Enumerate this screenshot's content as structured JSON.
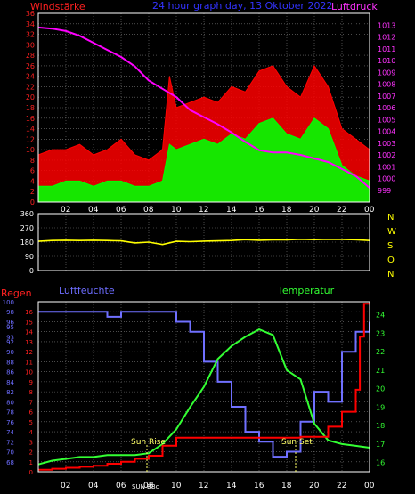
{
  "colors": {
    "background": "#000000",
    "grid": "#7a7a7a",
    "frame": "#ffffff",
    "wind_label": "#ff2020",
    "pressure_label": "#ff33ff",
    "title_color": "#3333ff",
    "direction_label": "#ffff00",
    "regen_label": "#ff2020",
    "humidity_label": "#6d6dff",
    "temperature_label": "#33ff33",
    "tick_text": "#ffffff"
  },
  "header": {
    "left_label": "Windstärke",
    "center_title": "24 hour graph day, 13 Oktober 2022",
    "right_label": "Luftdruck"
  },
  "direction_labels": [
    "N",
    "W",
    "S",
    "O",
    "N"
  ],
  "bottom_labels": {
    "regen": "Regen",
    "luftfeuchte": "Luftfeuchte",
    "temperatur": "Temperatur",
    "sun_rise": "Sun Rise",
    "sun_set": "Sun Set",
    "sun_bbc": "SUN BBc"
  },
  "chart_data": [
    {
      "type": "line",
      "name": "wind_pressure",
      "x_ticks": [
        "02",
        "04",
        "06",
        "08",
        "10",
        "12",
        "14",
        "16",
        "18",
        "20",
        "22",
        "00"
      ],
      "xlim": [
        0,
        24
      ],
      "ylim_left": [
        0,
        36
      ],
      "yticks_left": [
        0,
        2,
        4,
        6,
        8,
        10,
        12,
        14,
        16,
        18,
        20,
        22,
        24,
        26,
        28,
        30,
        32,
        34,
        36
      ],
      "ylim_right": [
        998,
        1014
      ],
      "yticks_right": [
        999,
        1000,
        1001,
        1002,
        1003,
        1004,
        1005,
        1006,
        1007,
        1008,
        1009,
        1010,
        1011,
        1012,
        1013
      ],
      "series": [
        {
          "name": "Windstärke",
          "color": "#ff0000",
          "x": [
            0,
            1,
            2,
            3,
            4,
            5,
            6,
            7,
            8,
            9,
            9.5,
            10,
            11,
            12,
            13,
            14,
            15,
            16,
            17,
            18,
            19,
            20,
            21,
            22,
            23,
            24
          ],
          "y": [
            9,
            10,
            10,
            11,
            9,
            10,
            12,
            9,
            8,
            10,
            24,
            18,
            19,
            20,
            19,
            22,
            21,
            25,
            26,
            22,
            20,
            26,
            22,
            14,
            12,
            10
          ]
        },
        {
          "name": "Windstärke (Mittel)",
          "color": "#00ff00",
          "x": [
            0,
            1,
            2,
            3,
            4,
            5,
            6,
            7,
            8,
            9,
            9.5,
            10,
            11,
            12,
            13,
            14,
            15,
            16,
            17,
            18,
            19,
            20,
            21,
            22,
            23,
            24
          ],
          "y": [
            3,
            3,
            4,
            4,
            3,
            4,
            4,
            3,
            3,
            4,
            11,
            10,
            11,
            12,
            11,
            13,
            12,
            15,
            16,
            13,
            12,
            16,
            14,
            7,
            5,
            4
          ]
        },
        {
          "name": "Luftdruck",
          "color": "#ff00ff",
          "x": [
            0,
            1,
            2,
            3,
            4,
            5,
            6,
            7,
            8,
            9,
            10,
            11,
            12,
            13,
            14,
            15,
            16,
            17,
            18,
            19,
            20,
            21,
            22,
            23,
            24
          ],
          "y": [
            1012.8,
            1012.7,
            1012.5,
            1012.1,
            1011.5,
            1010.9,
            1010.3,
            1009.5,
            1008.3,
            1007.6,
            1006.9,
            1005.8,
            1005.2,
            1004.6,
            1003.9,
            1003.1,
            1002.4,
            1002.2,
            1002.2,
            1002.0,
            1001.7,
            1001.4,
            1000.8,
            1000.2,
            999.2
          ]
        }
      ]
    },
    {
      "type": "line",
      "name": "wind_direction",
      "xlim": [
        0,
        24
      ],
      "ylim": [
        0,
        360
      ],
      "yticks": [
        0,
        90,
        180,
        270,
        360
      ],
      "series": [
        {
          "name": "Windrichtung",
          "color": "#ffff00",
          "x": [
            0,
            1,
            2,
            3,
            4,
            5,
            6,
            7,
            8,
            9,
            10,
            11,
            12,
            13,
            14,
            15,
            16,
            17,
            18,
            19,
            20,
            21,
            22,
            23,
            24
          ],
          "y": [
            185,
            190,
            192,
            190,
            192,
            190,
            188,
            175,
            180,
            165,
            185,
            183,
            186,
            188,
            190,
            196,
            192,
            194,
            194,
            198,
            196,
            198,
            197,
            195,
            190
          ]
        }
      ]
    },
    {
      "type": "line",
      "name": "rain_humidity_temperature",
      "x_ticks": [
        "02",
        "04",
        "06",
        "08",
        "10",
        "12",
        "14",
        "16",
        "18",
        "20",
        "22",
        "00"
      ],
      "xlim": [
        0,
        24
      ],
      "ylim_rain": [
        0,
        17
      ],
      "yticks_rain": [
        0,
        1,
        2,
        3,
        4,
        5,
        6,
        7,
        8,
        9,
        10,
        11,
        12,
        13,
        14,
        15,
        16
      ],
      "ylim_humidity": [
        66,
        100
      ],
      "yticks_humidity": [
        68,
        70,
        72,
        74,
        76,
        78,
        80,
        82,
        84,
        86,
        88,
        90,
        92,
        93,
        95,
        96,
        98,
        100
      ],
      "ylim_temperature": [
        15.5,
        24.7
      ],
      "yticks_temperature": [
        16,
        17,
        18,
        19,
        20,
        21,
        22,
        23,
        24
      ],
      "series": [
        {
          "name": "Regen",
          "color": "#ff0000",
          "x": [
            0,
            1,
            2,
            3,
            4,
            5,
            6,
            7,
            8,
            9,
            10,
            11,
            12,
            13,
            14,
            15,
            16,
            17,
            18,
            19,
            20,
            21,
            22,
            23,
            23.3,
            23.6,
            24
          ],
          "y": [
            0.2,
            0.3,
            0.4,
            0.5,
            0.6,
            0.8,
            1.0,
            1.3,
            1.6,
            2.6,
            3.4,
            3.4,
            3.4,
            3.4,
            3.4,
            3.4,
            3.4,
            3.4,
            3.4,
            3.5,
            3.5,
            4.5,
            6.0,
            8.2,
            13.5,
            16.8,
            16.8
          ]
        },
        {
          "name": "Luftfeuchte",
          "color": "#7070ff",
          "x": [
            0,
            1,
            2,
            3,
            4,
            5,
            6,
            7,
            8,
            9,
            10,
            11,
            12,
            13,
            14,
            15,
            16,
            17,
            18,
            19,
            20,
            21,
            22,
            23,
            24
          ],
          "y": [
            98,
            98,
            98,
            98,
            98,
            97,
            98,
            98,
            98,
            98,
            96,
            94,
            88,
            84,
            79,
            74,
            72,
            69,
            70,
            76,
            82,
            80,
            90,
            94,
            96
          ]
        },
        {
          "name": "Temperatur",
          "color": "#33ff33",
          "x": [
            0,
            1,
            2,
            3,
            4,
            5,
            6,
            7,
            8,
            9,
            10,
            11,
            12,
            13,
            14,
            15,
            16,
            17,
            18,
            19,
            20,
            21,
            22,
            23,
            24
          ],
          "y": [
            15.9,
            16.1,
            16.2,
            16.3,
            16.3,
            16.4,
            16.4,
            16.4,
            16.5,
            17.0,
            17.8,
            19.0,
            20.1,
            21.6,
            22.3,
            22.8,
            23.2,
            22.9,
            21.0,
            20.5,
            18.1,
            17.2,
            17.0,
            16.9,
            16.8
          ]
        }
      ]
    }
  ]
}
